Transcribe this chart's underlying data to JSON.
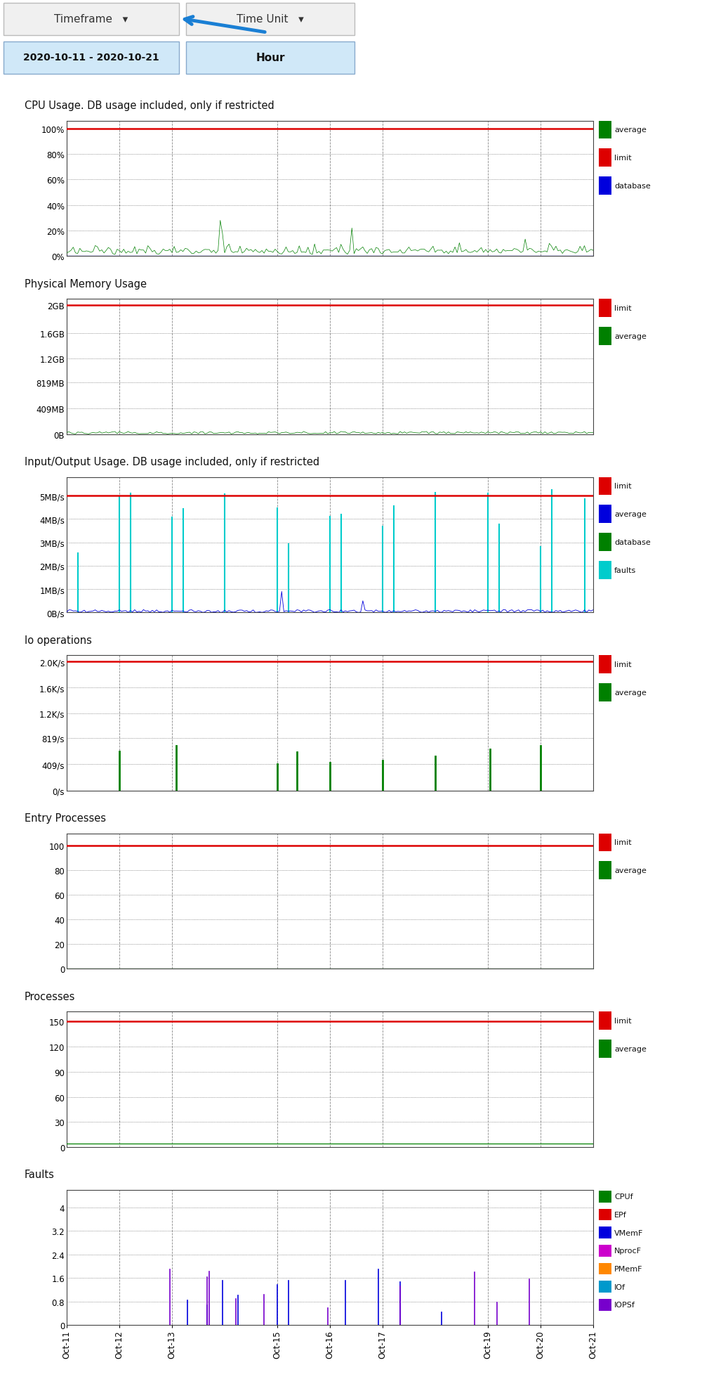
{
  "charts": [
    {
      "title": "CPU Usage. DB usage included, only if restricted",
      "ytick_labels": [
        "0%",
        "20%",
        "40%",
        "60%",
        "80%",
        "100%"
      ],
      "ytick_vals": [
        0,
        20,
        40,
        60,
        80,
        100
      ],
      "ylim": [
        0,
        106
      ],
      "limit_y": 100,
      "legend": [
        [
          "average",
          "#008000"
        ],
        [
          "limit",
          "#dd0000"
        ],
        [
          "database",
          "#0000dd"
        ]
      ]
    },
    {
      "title": "Physical Memory Usage",
      "ytick_labels": [
        "0B",
        "409MB",
        "819MB",
        "1.2GB",
        "1.6GB",
        "2GB"
      ],
      "ytick_vals": [
        0,
        409,
        819,
        1200,
        1600,
        2048
      ],
      "ylim": [
        0,
        2150
      ],
      "limit_y": 2048,
      "legend": [
        [
          "limit",
          "#dd0000"
        ],
        [
          "average",
          "#008000"
        ]
      ]
    },
    {
      "title": "Input/Output Usage. DB usage included, only if restricted",
      "ytick_labels": [
        "0B/s",
        "1MB/s",
        "2MB/s",
        "3MB/s",
        "4MB/s",
        "5MB/s"
      ],
      "ytick_vals": [
        0,
        1,
        2,
        3,
        4,
        5
      ],
      "ylim": [
        0,
        5.8
      ],
      "limit_y": 5,
      "legend": [
        [
          "limit",
          "#dd0000"
        ],
        [
          "average",
          "#0000dd"
        ],
        [
          "database",
          "#008000"
        ],
        [
          "faults",
          "#00cccc"
        ]
      ]
    },
    {
      "title": "Io operations",
      "ytick_labels": [
        "0/s",
        "409/s",
        "819/s",
        "1.2K/s",
        "1.6K/s",
        "2.0K/s"
      ],
      "ytick_vals": [
        0,
        409,
        819,
        1200,
        1600,
        2000
      ],
      "ylim": [
        0,
        2100
      ],
      "limit_y": 2000,
      "legend": [
        [
          "limit",
          "#dd0000"
        ],
        [
          "average",
          "#008000"
        ]
      ]
    },
    {
      "title": "Entry Processes",
      "ytick_labels": [
        "0",
        "20",
        "40",
        "60",
        "80",
        "100"
      ],
      "ytick_vals": [
        0,
        20,
        40,
        60,
        80,
        100
      ],
      "ylim": [
        0,
        110
      ],
      "limit_y": 100,
      "legend": [
        [
          "limit",
          "#dd0000"
        ],
        [
          "average",
          "#008000"
        ]
      ]
    },
    {
      "title": "Processes",
      "ytick_labels": [
        "0",
        "30",
        "60",
        "90",
        "120",
        "150"
      ],
      "ytick_vals": [
        0,
        30,
        60,
        90,
        120,
        150
      ],
      "ylim": [
        0,
        162
      ],
      "limit_y": 150,
      "legend": [
        [
          "limit",
          "#dd0000"
        ],
        [
          "average",
          "#008000"
        ]
      ]
    },
    {
      "title": "Faults",
      "ytick_labels": [
        "0",
        "0.8",
        "1.6",
        "2.4",
        "3.2",
        "4"
      ],
      "ytick_vals": [
        0,
        0.8,
        1.6,
        2.4,
        3.2,
        4
      ],
      "ylim": [
        0,
        4.6
      ],
      "limit_y": null,
      "legend": [
        [
          "CPUf",
          "#008000"
        ],
        [
          "EPf",
          "#dd0000"
        ],
        [
          "VMemF",
          "#0000dd"
        ],
        [
          "NprocF",
          "#cc00cc"
        ],
        [
          "PMemF",
          "#ff8800"
        ],
        [
          "IOf",
          "#0099cc"
        ],
        [
          "IOPSf",
          "#7700cc"
        ]
      ]
    }
  ],
  "x_tick_positions": [
    0,
    24,
    48,
    96,
    120,
    144,
    192,
    216,
    240
  ],
  "x_tick_labels": [
    "Oct-11",
    "Oct-12",
    "Oct-13",
    "Oct-15",
    "Oct-16",
    "Oct-17",
    "Oct-19",
    "Oct-20",
    "Oct-21"
  ],
  "x_total": 240,
  "header_btn_bg": "#f0f0f0",
  "header_sel_bg": "#d0e8f8",
  "header_border": "#bbbbbb",
  "arrow_color": "#1a7fd4"
}
